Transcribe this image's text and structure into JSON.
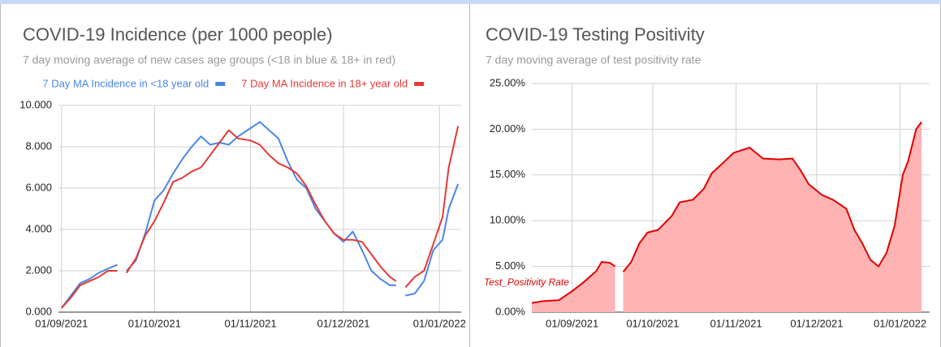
{
  "chart_data": [
    {
      "type": "line",
      "title": "COVID-19 Incidence (per 1000 people)",
      "subtitle": "7 day moving average of new cases age groups (<18 in blue & 18+ in red)",
      "legend": "top",
      "grid": true,
      "x": [
        "2021-09-01",
        "2021-09-04",
        "2021-09-07",
        "2021-09-10",
        "2021-09-13",
        "2021-09-16",
        "2021-09-19",
        "2021-09-20",
        "2021-09-22",
        "2021-09-25",
        "2021-09-28",
        "2021-10-01",
        "2021-10-04",
        "2021-10-07",
        "2021-10-10",
        "2021-10-13",
        "2021-10-16",
        "2021-10-19",
        "2021-10-22",
        "2021-10-25",
        "2021-10-28",
        "2021-11-01",
        "2021-11-04",
        "2021-11-07",
        "2021-11-10",
        "2021-11-13",
        "2021-11-16",
        "2021-11-19",
        "2021-11-22",
        "2021-11-25",
        "2021-11-28",
        "2021-12-01",
        "2021-12-04",
        "2021-12-07",
        "2021-12-10",
        "2021-12-13",
        "2021-12-16",
        "2021-12-18",
        "2021-12-19",
        "2021-12-21",
        "2021-12-24",
        "2021-12-27",
        "2021-12-30",
        "2022-01-02",
        "2022-01-04",
        "2022-01-07"
      ],
      "series": [
        {
          "name": "7 Day MA Incidence in <18 year old",
          "color": "#4a86e8",
          "values": [
            0.2,
            0.8,
            1.4,
            1.6,
            1.9,
            2.1,
            2.3,
            null,
            2.0,
            2.5,
            3.8,
            5.4,
            5.9,
            6.7,
            7.4,
            8.0,
            8.5,
            8.1,
            8.2,
            8.1,
            8.5,
            8.9,
            9.2,
            8.8,
            8.4,
            7.3,
            6.4,
            6.0,
            5.0,
            4.4,
            3.8,
            3.4,
            3.9,
            3.0,
            2.0,
            1.6,
            1.3,
            1.3,
            null,
            0.8,
            0.9,
            1.5,
            3.0,
            3.5,
            5.0,
            6.2
          ]
        },
        {
          "name": "7 Day MA Incidence in 18+ year old",
          "color": "#e53935",
          "values": [
            0.2,
            0.7,
            1.3,
            1.5,
            1.7,
            2.0,
            2.0,
            null,
            1.9,
            2.6,
            3.7,
            4.4,
            5.3,
            6.3,
            6.5,
            6.8,
            7.0,
            7.6,
            8.2,
            8.8,
            8.4,
            8.3,
            8.1,
            7.6,
            7.2,
            7.0,
            6.7,
            6.1,
            5.2,
            4.4,
            3.8,
            3.5,
            3.5,
            3.4,
            2.8,
            2.2,
            1.7,
            1.5,
            null,
            1.2,
            1.7,
            2.0,
            3.3,
            4.6,
            7.0,
            9.0
          ]
        }
      ],
      "xlim": [
        "2021-08-31",
        "2022-01-08"
      ],
      "xticks": [
        {
          "value": "2021-09-01",
          "label": "01/09/2021"
        },
        {
          "value": "2021-10-01",
          "label": "01/10/2021"
        },
        {
          "value": "2021-11-01",
          "label": "01/11/2021"
        },
        {
          "value": "2021-12-01",
          "label": "01/12/2021"
        },
        {
          "value": "2022-01-01",
          "label": "01/01/2022"
        }
      ],
      "ylim": [
        0,
        10
      ],
      "yticks": [
        {
          "value": 0,
          "label": "0.000"
        },
        {
          "value": 2,
          "label": "2.000"
        },
        {
          "value": 4,
          "label": "4.000"
        },
        {
          "value": 6,
          "label": "6.000"
        },
        {
          "value": 8,
          "label": "8.000"
        },
        {
          "value": 10,
          "label": "10.000"
        }
      ]
    },
    {
      "type": "area",
      "title": "COVID-19 Testing Positivity",
      "subtitle": "7 day moving average of test positivity rate",
      "legend": "bottom-left",
      "grid": true,
      "x": [
        "2021-08-17",
        "2021-08-21",
        "2021-08-27",
        "2021-09-01",
        "2021-09-05",
        "2021-09-10",
        "2021-09-12",
        "2021-09-15",
        "2021-09-17",
        "2021-09-18",
        "2021-09-20",
        "2021-09-23",
        "2021-09-26",
        "2021-09-29",
        "2021-10-03",
        "2021-10-08",
        "2021-10-11",
        "2021-10-16",
        "2021-10-20",
        "2021-10-23",
        "2021-10-26",
        "2021-10-31",
        "2021-11-06",
        "2021-11-11",
        "2021-11-17",
        "2021-11-22",
        "2021-11-25",
        "2021-11-28",
        "2021-12-03",
        "2021-12-07",
        "2021-12-12",
        "2021-12-15",
        "2021-12-18",
        "2021-12-21",
        "2021-12-24",
        "2021-12-27",
        "2021-12-30",
        "2022-01-02",
        "2022-01-04",
        "2022-01-07",
        "2022-01-09"
      ],
      "series": [
        {
          "name": "Test_Positivity Rate",
          "color": "#e00000",
          "fill": "#ffb3b3",
          "values": [
            1.0,
            1.2,
            1.3,
            2.3,
            3.2,
            4.5,
            5.5,
            5.4,
            5.0,
            null,
            4.4,
            5.5,
            7.5,
            8.7,
            9.0,
            10.5,
            12.0,
            12.3,
            13.5,
            15.2,
            16.0,
            17.4,
            18.0,
            16.8,
            16.7,
            16.8,
            15.5,
            14.0,
            12.8,
            12.3,
            11.3,
            9.0,
            7.5,
            5.7,
            5.0,
            6.5,
            9.5,
            15.0,
            16.5,
            20.0,
            20.8
          ]
        }
      ],
      "xlim": [
        "2021-08-17",
        "2022-01-12"
      ],
      "xticks": [
        {
          "value": "2021-09-01",
          "label": "01/09/2021"
        },
        {
          "value": "2021-10-01",
          "label": "01/10/2021"
        },
        {
          "value": "2021-11-01",
          "label": "01/11/2021"
        },
        {
          "value": "2021-12-01",
          "label": "01/12/2021"
        },
        {
          "value": "2022-01-01",
          "label": "01/01/2022"
        }
      ],
      "ylim": [
        0,
        25
      ],
      "yticks": [
        {
          "value": 0,
          "label": "0.00%"
        },
        {
          "value": 5,
          "label": "5.00%"
        },
        {
          "value": 10,
          "label": "10.00%"
        },
        {
          "value": 15,
          "label": "15.00%"
        },
        {
          "value": 20,
          "label": "20.00%"
        },
        {
          "value": 25,
          "label": "25.00%"
        }
      ]
    }
  ]
}
